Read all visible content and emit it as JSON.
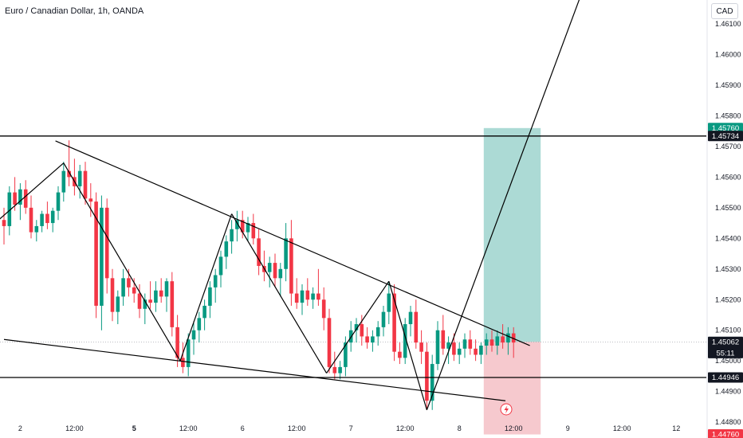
{
  "header": {
    "title": "Euro / Canadian Dollar, 1h, OANDA",
    "currency": "CAD"
  },
  "colors": {
    "up": "#089981",
    "down": "#f23645",
    "target_zone": "#a8d8d3",
    "stop_zone": "#f5c6cb",
    "tp_label": "#089981",
    "sl_label": "#f23645",
    "line": "#000000"
  },
  "chart_data": {
    "type": "candlestick",
    "symbol": "EURCAD",
    "timeframe": "1h",
    "ylim": [
      1.4473,
      1.4625
    ],
    "price_ticks": [
      "1.46100",
      "1.46000",
      "1.45900",
      "1.45800",
      "1.45700",
      "1.45600",
      "1.45500",
      "1.45400",
      "1.45300",
      "1.45200",
      "1.45100",
      "1.45000",
      "1.44900",
      "1.44800"
    ],
    "time_ticks": [
      {
        "label": "2",
        "slot": 3,
        "bold": false
      },
      {
        "label": "12:00",
        "slot": 13,
        "bold": false
      },
      {
        "label": "5",
        "slot": 24,
        "bold": true
      },
      {
        "label": "12:00",
        "slot": 34,
        "bold": false
      },
      {
        "label": "6",
        "slot": 44,
        "bold": false
      },
      {
        "label": "12:00",
        "slot": 54,
        "bold": false
      },
      {
        "label": "7",
        "slot": 64,
        "bold": false
      },
      {
        "label": "12:00",
        "slot": 74,
        "bold": false
      },
      {
        "label": "8",
        "slot": 84,
        "bold": false
      },
      {
        "label": "12:00",
        "slot": 94,
        "bold": false
      },
      {
        "label": "9",
        "slot": 104,
        "bold": false
      },
      {
        "label": "12:00",
        "slot": 114,
        "bold": false
      },
      {
        "label": "12",
        "slot": 124,
        "bold": false
      }
    ],
    "price_labels": [
      {
        "text": "1.45760",
        "price": 1.4576,
        "style": "tp"
      },
      {
        "text": "1.45734",
        "price": 1.45734,
        "style": "dark"
      },
      {
        "text": "1.45063",
        "price": 1.45063,
        "style": "grey"
      },
      {
        "text": "1.45062",
        "price": 1.45062,
        "style": "dark",
        "extra": "55:11"
      },
      {
        "text": "1.44946",
        "price": 1.44946,
        "style": "dark"
      },
      {
        "text": "1.44760",
        "price": 1.4476,
        "style": "sl"
      }
    ],
    "horizontal_lines": [
      1.45734,
      1.44946
    ],
    "current_price": 1.45062,
    "position": {
      "entry": 1.45062,
      "target": 1.4576,
      "stop": 1.4476,
      "slot_start": 88.5,
      "slot_end": 99
    },
    "trend_lines": [
      {
        "from": [
          9.5,
          1.45718
        ],
        "to": [
          97,
          1.4505
        ]
      },
      {
        "from": [
          0,
          1.4507
        ],
        "to": [
          92.5,
          1.4487
        ]
      },
      {
        "from": [
          -1,
          1.4546
        ],
        "to": [
          11,
          1.45646
        ]
      },
      {
        "from": [
          11,
          1.45646
        ],
        "to": [
          32.5,
          1.45
        ]
      },
      {
        "from": [
          32.5,
          1.45
        ],
        "to": [
          42,
          1.4548
        ]
      },
      {
        "from": [
          42,
          1.4548
        ],
        "to": [
          59.5,
          1.4496
        ]
      },
      {
        "from": [
          59.5,
          1.4496
        ],
        "to": [
          71,
          1.4526
        ]
      },
      {
        "from": [
          71,
          1.4526
        ],
        "to": [
          78,
          1.4484
        ]
      },
      {
        "from": [
          78,
          1.4484
        ],
        "to": [
          116,
          1.4665
        ]
      }
    ],
    "candles": [
      [
        1.4546,
        1.455,
        1.4538,
        1.4544
      ],
      [
        1.4544,
        1.4557,
        1.4541,
        1.4555
      ],
      [
        1.4555,
        1.456,
        1.4549,
        1.4551
      ],
      [
        1.4551,
        1.4558,
        1.4546,
        1.4556
      ],
      [
        1.4556,
        1.4559,
        1.4548,
        1.455
      ],
      [
        1.455,
        1.4554,
        1.454,
        1.4542
      ],
      [
        1.4542,
        1.4546,
        1.4539,
        1.4544
      ],
      [
        1.4544,
        1.4549,
        1.4542,
        1.4548
      ],
      [
        1.4548,
        1.4552,
        1.4543,
        1.4545
      ],
      [
        1.4545,
        1.455,
        1.4542,
        1.4549
      ],
      [
        1.4549,
        1.4557,
        1.4546,
        1.4555
      ],
      [
        1.4555,
        1.4565,
        1.4552,
        1.4562
      ],
      [
        1.4562,
        1.4572,
        1.4557,
        1.456
      ],
      [
        1.456,
        1.4566,
        1.4554,
        1.4557
      ],
      [
        1.4557,
        1.4564,
        1.4553,
        1.4562
      ],
      [
        1.4562,
        1.4565,
        1.4551,
        1.4553
      ],
      [
        1.4553,
        1.4558,
        1.4547,
        1.4552
      ],
      [
        1.4552,
        1.4555,
        1.4514,
        1.4518
      ],
      [
        1.4518,
        1.4554,
        1.451,
        1.455
      ],
      [
        1.455,
        1.4553,
        1.4522,
        1.4527
      ],
      [
        1.4527,
        1.453,
        1.4513,
        1.4516
      ],
      [
        1.4516,
        1.4523,
        1.4512,
        1.4521
      ],
      [
        1.4521,
        1.453,
        1.4518,
        1.4527
      ],
      [
        1.4527,
        1.453,
        1.4521,
        1.4524
      ],
      [
        1.4524,
        1.4527,
        1.4519,
        1.4522
      ],
      [
        1.4522,
        1.4525,
        1.4514,
        1.4517
      ],
      [
        1.4517,
        1.4522,
        1.4512,
        1.452
      ],
      [
        1.452,
        1.4526,
        1.4517,
        1.4519
      ],
      [
        1.4519,
        1.4526,
        1.4516,
        1.4523
      ],
      [
        1.4523,
        1.4527,
        1.4519,
        1.4521
      ],
      [
        1.4521,
        1.4527,
        1.4516,
        1.4526
      ],
      [
        1.4526,
        1.4529,
        1.4508,
        1.4511
      ],
      [
        1.4511,
        1.4515,
        1.4498,
        1.4501
      ],
      [
        1.4501,
        1.4506,
        1.4496,
        1.4498
      ],
      [
        1.4498,
        1.4509,
        1.4495,
        1.4507
      ],
      [
        1.4507,
        1.4513,
        1.4502,
        1.451
      ],
      [
        1.451,
        1.4516,
        1.4506,
        1.4514
      ],
      [
        1.4514,
        1.452,
        1.451,
        1.4518
      ],
      [
        1.4518,
        1.4526,
        1.4514,
        1.4524
      ],
      [
        1.4524,
        1.453,
        1.4519,
        1.4528
      ],
      [
        1.4528,
        1.4536,
        1.4524,
        1.4534
      ],
      [
        1.4534,
        1.4541,
        1.453,
        1.4539
      ],
      [
        1.4539,
        1.4546,
        1.4535,
        1.4543
      ],
      [
        1.4543,
        1.4549,
        1.4539,
        1.4546
      ],
      [
        1.4546,
        1.4549,
        1.454,
        1.4542
      ],
      [
        1.4542,
        1.4547,
        1.4539,
        1.4545
      ],
      [
        1.4545,
        1.4548,
        1.4538,
        1.454
      ],
      [
        1.454,
        1.4543,
        1.4528,
        1.4531
      ],
      [
        1.4531,
        1.4536,
        1.4526,
        1.4529
      ],
      [
        1.4529,
        1.4534,
        1.4524,
        1.4532
      ],
      [
        1.4532,
        1.4535,
        1.4524,
        1.4527
      ],
      [
        1.4527,
        1.4532,
        1.4521,
        1.453
      ],
      [
        1.453,
        1.4545,
        1.4526,
        1.454
      ],
      [
        1.454,
        1.4546,
        1.4518,
        1.4522
      ],
      [
        1.4522,
        1.4527,
        1.4517,
        1.4519
      ],
      [
        1.4519,
        1.4525,
        1.4515,
        1.4523
      ],
      [
        1.4523,
        1.4527,
        1.4518,
        1.452
      ],
      [
        1.452,
        1.4524,
        1.4517,
        1.4522
      ],
      [
        1.4522,
        1.453,
        1.4518,
        1.452
      ],
      [
        1.452,
        1.4524,
        1.451,
        1.4514
      ],
      [
        1.4514,
        1.4517,
        1.4496,
        1.4498
      ],
      [
        1.4498,
        1.4503,
        1.4494,
        1.4496
      ],
      [
        1.4496,
        1.45,
        1.4494,
        1.4498
      ],
      [
        1.4498,
        1.4508,
        1.4495,
        1.4506
      ],
      [
        1.4506,
        1.4513,
        1.4503,
        1.451
      ],
      [
        1.451,
        1.4514,
        1.4506,
        1.4512
      ],
      [
        1.4512,
        1.4515,
        1.4505,
        1.4508
      ],
      [
        1.4508,
        1.4511,
        1.4504,
        1.4506
      ],
      [
        1.4506,
        1.451,
        1.4503,
        1.4508
      ],
      [
        1.4508,
        1.4513,
        1.4505,
        1.4511
      ],
      [
        1.4511,
        1.4518,
        1.4508,
        1.4516
      ],
      [
        1.4516,
        1.4526,
        1.4512,
        1.4522
      ],
      [
        1.4522,
        1.4525,
        1.45,
        1.4503
      ],
      [
        1.4503,
        1.4506,
        1.4499,
        1.4501
      ],
      [
        1.4501,
        1.4514,
        1.4499,
        1.4512
      ],
      [
        1.4512,
        1.4518,
        1.4508,
        1.4516
      ],
      [
        1.4516,
        1.452,
        1.4504,
        1.4506
      ],
      [
        1.4506,
        1.451,
        1.4499,
        1.4503
      ],
      [
        1.4503,
        1.4506,
        1.4484,
        1.4487
      ],
      [
        1.4487,
        1.4502,
        1.4484,
        1.4499
      ],
      [
        1.4499,
        1.4513,
        1.4497,
        1.451
      ],
      [
        1.451,
        1.4515,
        1.4502,
        1.4504
      ],
      [
        1.4504,
        1.4508,
        1.4499,
        1.4506
      ],
      [
        1.4506,
        1.4509,
        1.45,
        1.4502
      ],
      [
        1.4502,
        1.4506,
        1.4499,
        1.4504
      ],
      [
        1.4504,
        1.4509,
        1.4501,
        1.4507
      ],
      [
        1.4507,
        1.451,
        1.4502,
        1.4504
      ],
      [
        1.4504,
        1.4507,
        1.45,
        1.4502
      ],
      [
        1.4502,
        1.4506,
        1.4499,
        1.4505
      ],
      [
        1.4505,
        1.4509,
        1.4502,
        1.4507
      ],
      [
        1.4507,
        1.451,
        1.4503,
        1.4505
      ],
      [
        1.4505,
        1.451,
        1.4502,
        1.4508
      ],
      [
        1.4508,
        1.4512,
        1.4504,
        1.4506
      ],
      [
        1.4506,
        1.4511,
        1.4502,
        1.4509
      ],
      [
        1.4509,
        1.4511,
        1.4501,
        1.4506
      ]
    ]
  }
}
